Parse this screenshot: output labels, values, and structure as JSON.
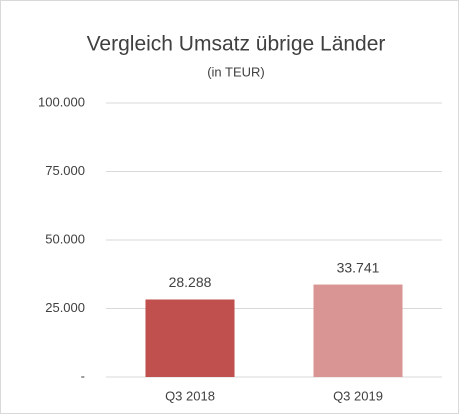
{
  "chart_data": {
    "type": "bar",
    "title": "Vergleich Umsatz übrige Länder",
    "subtitle": "(in TEUR)",
    "categories": [
      "Q3 2018",
      "Q3 2019"
    ],
    "values": [
      28288,
      33741
    ],
    "value_labels": [
      "28.288",
      "33.741"
    ],
    "colors": [
      "#c0504d",
      "#d99594"
    ],
    "ylim": [
      0,
      100000
    ],
    "yticks": [
      {
        "value": 0,
        "label": "-"
      },
      {
        "value": 25000,
        "label": "25.000"
      },
      {
        "value": 50000,
        "label": "50.000"
      },
      {
        "value": 75000,
        "label": "75.000"
      },
      {
        "value": 100000,
        "label": "100.000"
      }
    ],
    "grid": true
  }
}
